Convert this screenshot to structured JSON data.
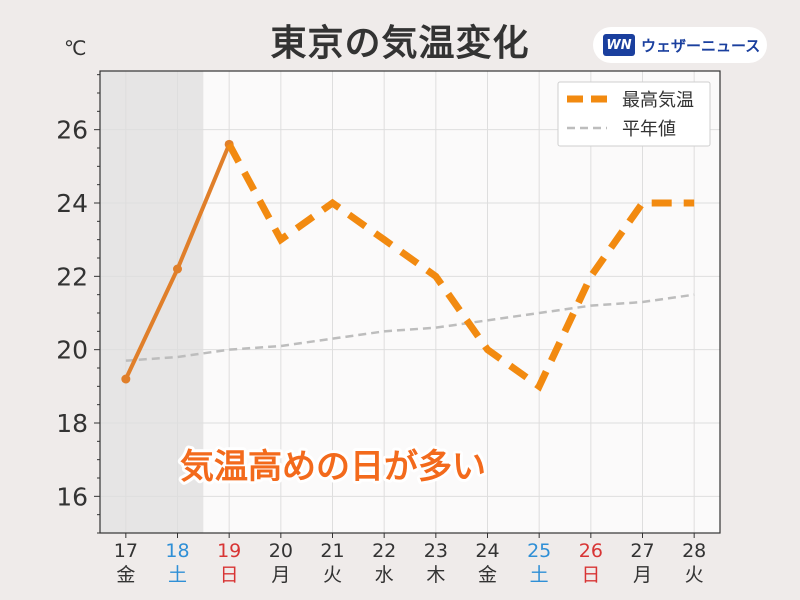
{
  "title": "東京の気温変化",
  "unit": "℃",
  "logo": {
    "mark": "WN",
    "text": "ウェザーニュース"
  },
  "annotation": "気温高めの日が多い",
  "colors": {
    "observed": "#e07f2a",
    "forecast": "#f28a10",
    "normal": "#bdbdbd",
    "saturday": "#2f8fd6",
    "sunday": "#d83434",
    "weekday": "#333333",
    "past_shade": "#e6e5e5",
    "plot_bg": "#fbfafa"
  },
  "chart_data": {
    "type": "line",
    "categories": [
      "17",
      "18",
      "19",
      "20",
      "21",
      "22",
      "23",
      "24",
      "25",
      "26",
      "27",
      "28"
    ],
    "weekdays": [
      "金",
      "土",
      "日",
      "月",
      "火",
      "水",
      "木",
      "金",
      "土",
      "日",
      "月",
      "火"
    ],
    "past_days": [
      "17",
      "18"
    ],
    "series": [
      {
        "name": "最高気温",
        "values": [
          19.2,
          22.2,
          25.6,
          23.0,
          24.0,
          23.0,
          22.0,
          20.0,
          19.0,
          22.0,
          24.0,
          24.0
        ],
        "observed_through": "19"
      },
      {
        "name": "平年値",
        "values": [
          19.7,
          19.8,
          20.0,
          20.1,
          20.3,
          20.5,
          20.6,
          20.8,
          21.0,
          21.2,
          21.3,
          21.5
        ]
      }
    ],
    "yticks": [
      16,
      18,
      20,
      22,
      24,
      26
    ],
    "ylim": [
      15.0,
      27.6
    ],
    "grid": true,
    "legend": "top-right"
  }
}
